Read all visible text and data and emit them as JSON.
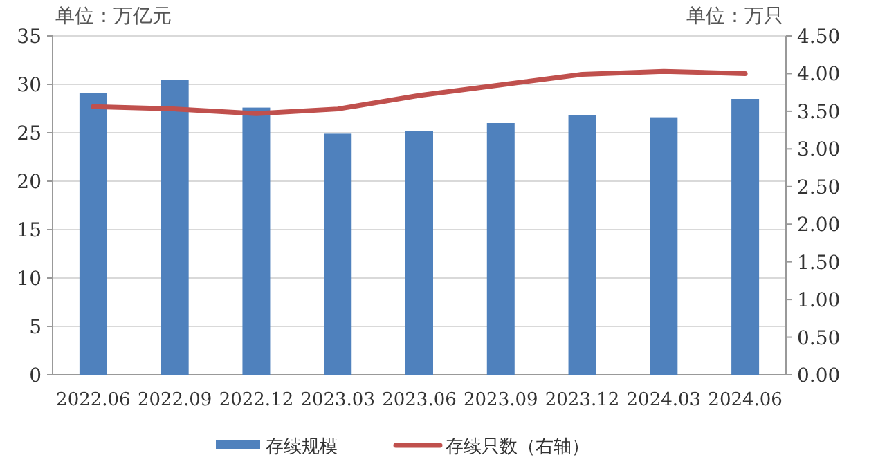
{
  "chart_data": {
    "type": "bar",
    "ylabel": "单位：万亿元",
    "y2label": "单位：万只",
    "categories": [
      "2022.06",
      "2022.09",
      "2022.12",
      "2023.03",
      "2023.06",
      "2023.09",
      "2023.12",
      "2024.03",
      "2024.06"
    ],
    "series": [
      {
        "name": "存续规模",
        "color": "#4f81bd",
        "values": [
          29.1,
          30.5,
          27.6,
          24.9,
          25.2,
          26.0,
          26.8,
          26.6,
          28.5
        ]
      },
      {
        "name": "存续只数（右轴）",
        "type": "line",
        "axis": "y2",
        "color": "#c0504d",
        "values": [
          3.56,
          3.53,
          3.47,
          3.53,
          3.71,
          3.85,
          3.99,
          4.03,
          4.0
        ]
      }
    ],
    "ylim": [
      0,
      35
    ],
    "yticks": [
      0,
      5,
      10,
      15,
      20,
      25,
      30,
      35
    ],
    "y2lim": [
      0,
      4.5
    ],
    "y2ticks": [
      {
        "value": 0,
        "label": "0.00"
      },
      {
        "value": 0.5,
        "label": "0.50"
      },
      {
        "value": 1,
        "label": "1.00"
      },
      {
        "value": 1.5,
        "label": "1.50"
      },
      {
        "value": 2,
        "label": "2.00"
      },
      {
        "value": 2.5,
        "label": "2.50"
      },
      {
        "value": 3,
        "label": "3.00"
      },
      {
        "value": 3.5,
        "label": "3.50"
      },
      {
        "value": 4,
        "label": "4.00"
      },
      {
        "value": 4.5,
        "label": "4.50"
      }
    ],
    "grid": "y",
    "legend": "bottom",
    "marker": "none",
    "line_style": "solid"
  }
}
